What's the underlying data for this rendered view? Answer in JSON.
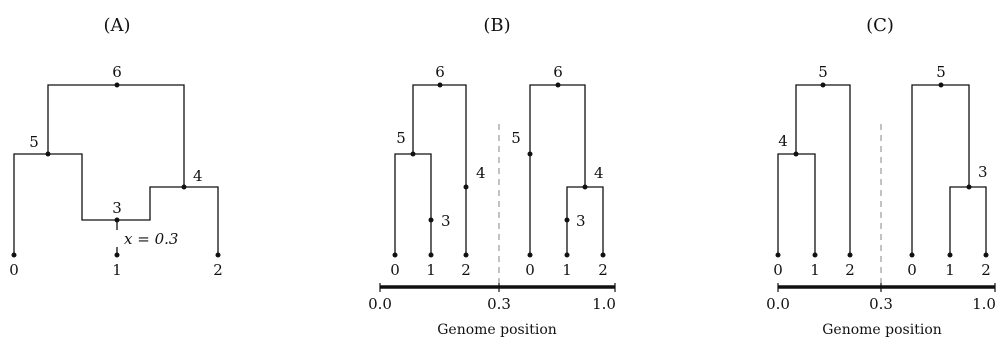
{
  "panels": {
    "a": {
      "title": "(A)",
      "nodes": {
        "n0": "0",
        "n1": "1",
        "n2": "2",
        "n3": "3",
        "n4": "4",
        "n5": "5",
        "n6": "6"
      },
      "annotation": "x = 0.3"
    },
    "b": {
      "title": "(B)",
      "left_tree": {
        "n0": "0",
        "n1": "1",
        "n2": "2",
        "n3": "3",
        "n4": "4",
        "n5": "5",
        "n6": "6"
      },
      "right_tree": {
        "n0": "0",
        "n1": "1",
        "n2": "2",
        "n3": "3",
        "n4": "4",
        "n5": "5",
        "n6": "6"
      },
      "axis": {
        "ticks": [
          "0.0",
          "0.3",
          "1.0"
        ],
        "label": "Genome position"
      }
    },
    "c": {
      "title": "(C)",
      "left_tree": {
        "n0": "0",
        "n1": "1",
        "n2": "2",
        "n4": "4",
        "n5": "5"
      },
      "right_tree": {
        "n0": "0",
        "n1": "1",
        "n2": "2",
        "n3": "3",
        "n5": "5"
      },
      "axis": {
        "ticks": [
          "0.0",
          "0.3",
          "1.0"
        ],
        "label": "Genome position"
      }
    }
  }
}
